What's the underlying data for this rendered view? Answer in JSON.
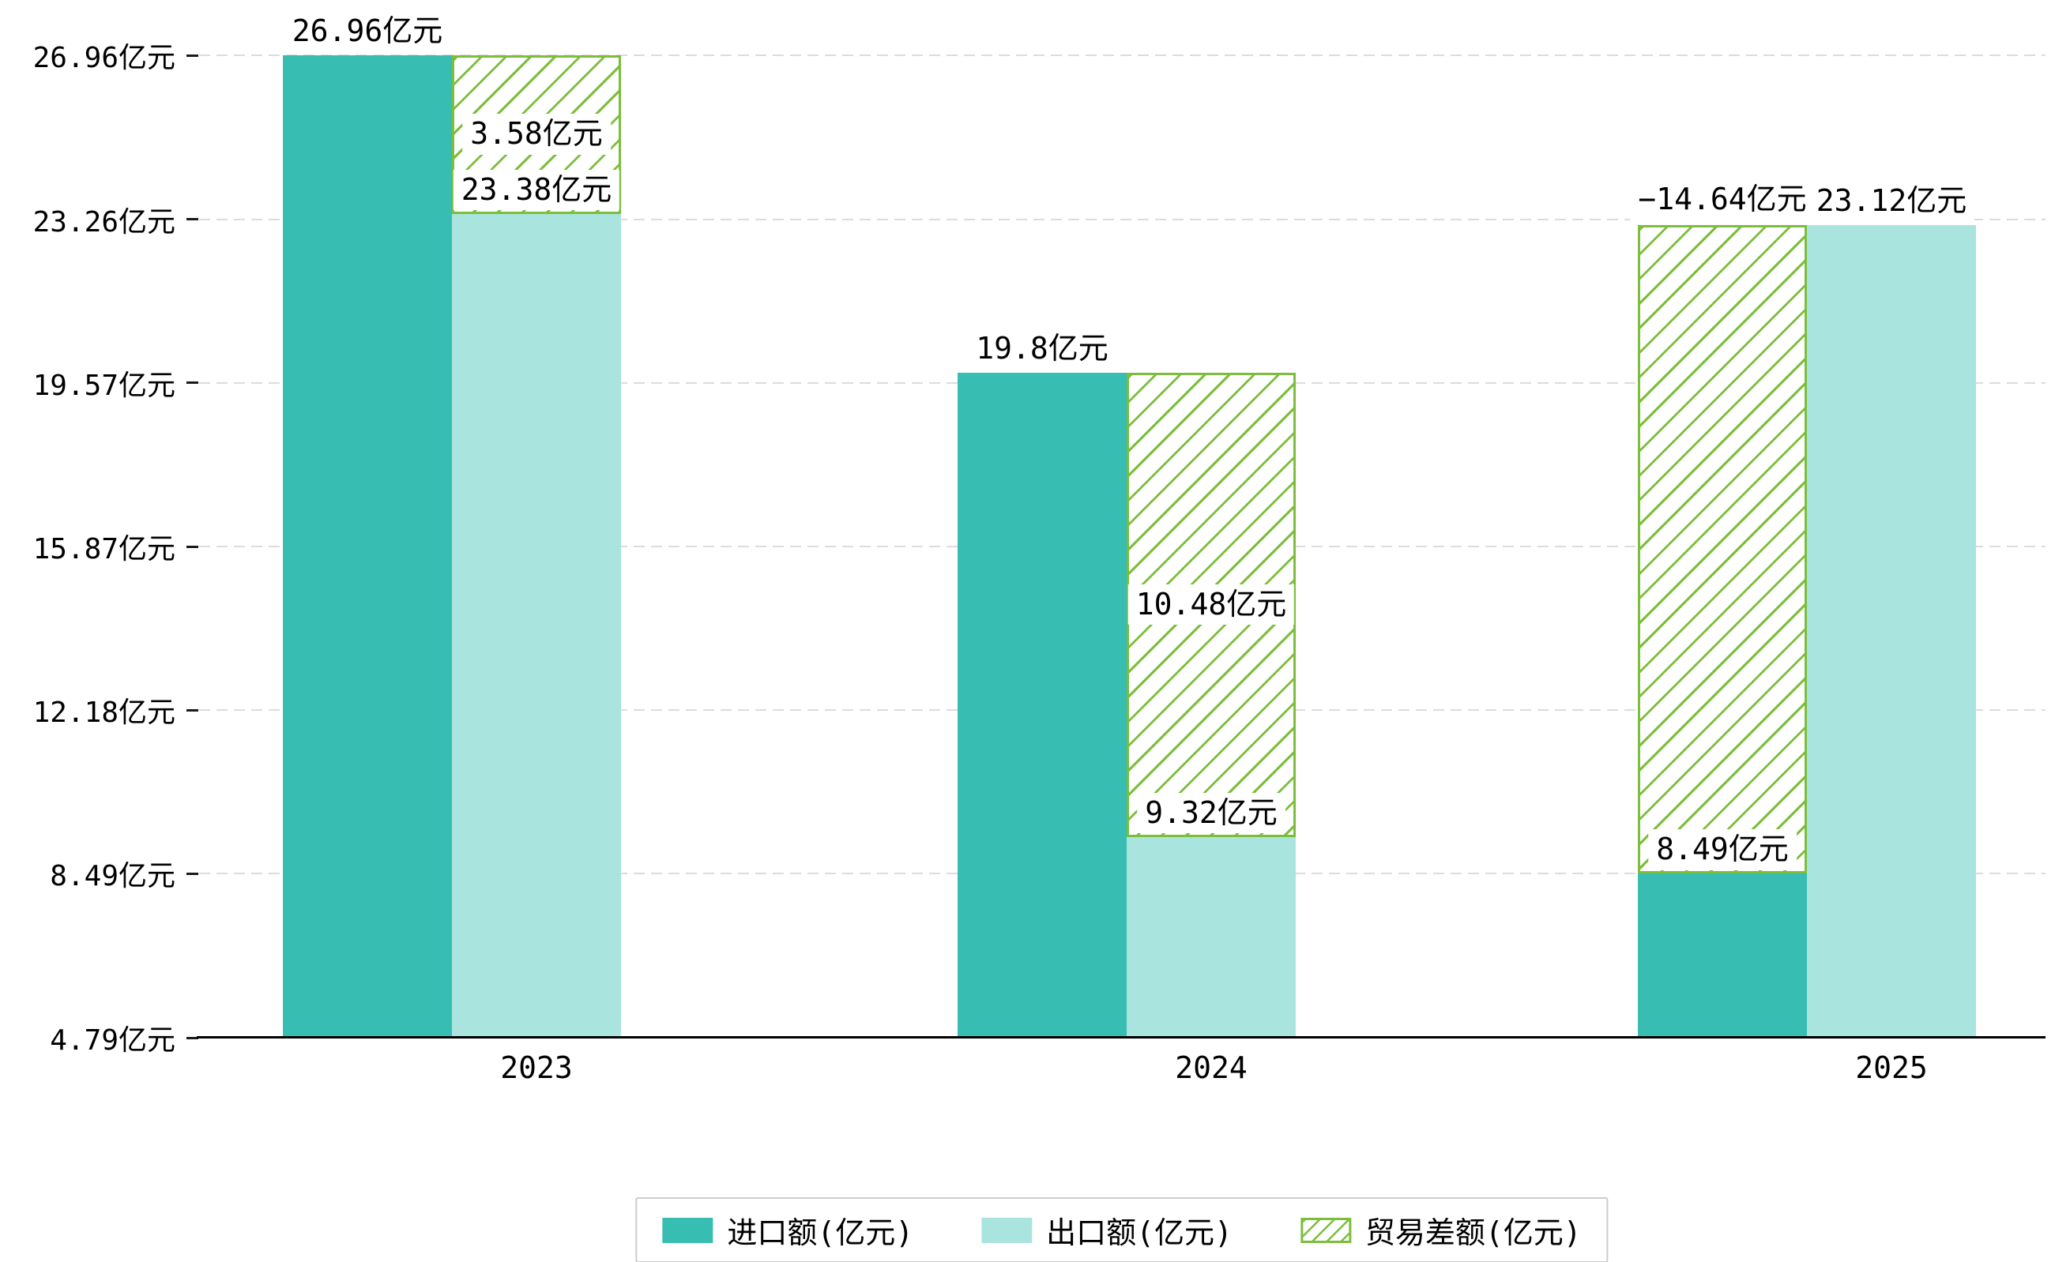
{
  "chart_data": {
    "type": "bar",
    "title": "",
    "categories": [
      "2023",
      "2024",
      "2025"
    ],
    "series": [
      {
        "name": "进口额(亿元)",
        "role": "import",
        "values": [
          26.96,
          19.8,
          8.49
        ],
        "labels": [
          "26.96亿元",
          "19.8亿元",
          "8.49亿元"
        ],
        "color": "#38bdb2",
        "style": "solid"
      },
      {
        "name": "出口额(亿元)",
        "role": "export",
        "values": [
          23.38,
          9.32,
          23.12
        ],
        "labels": [
          "23.38亿元",
          "9.32亿元",
          "23.12亿元"
        ],
        "color": "#a9e5de",
        "style": "solid"
      },
      {
        "name": "贸易差额(亿元)",
        "role": "balance",
        "values": [
          3.58,
          10.48,
          -14.64
        ],
        "labels": [
          "3.58亿元",
          "10.48亿元",
          "−14.64亿元"
        ],
        "color": "#7cbe3c",
        "style": "hatch"
      }
    ],
    "y_axis": {
      "unit": "亿元",
      "range": [
        4.79,
        26.96
      ],
      "ticks": [
        {
          "value": 4.79,
          "label": "4.79亿元"
        },
        {
          "value": 8.49,
          "label": "8.49亿元"
        },
        {
          "value": 12.18,
          "label": "12.18亿元"
        },
        {
          "value": 15.87,
          "label": "15.87亿元"
        },
        {
          "value": 19.57,
          "label": "19.57亿元"
        },
        {
          "value": 23.26,
          "label": "23.26亿元"
        },
        {
          "value": 26.96,
          "label": "26.96亿元"
        }
      ]
    },
    "x_axis": {
      "ticks": [
        "2023",
        "2024",
        "2025"
      ]
    },
    "legend": {
      "position": "bottom",
      "entries": [
        "进口额(亿元)",
        "出口额(亿元)",
        "贸易差额(亿元)"
      ]
    },
    "grid": "horizontal-dashed",
    "colors": {
      "import": "#38bdb2",
      "export": "#a9e5de",
      "balance": "#7cbe3c",
      "grid": "#dcdcdc",
      "axis": "#111111",
      "background": "#ffffff",
      "label_bg": "#ffffff"
    }
  }
}
